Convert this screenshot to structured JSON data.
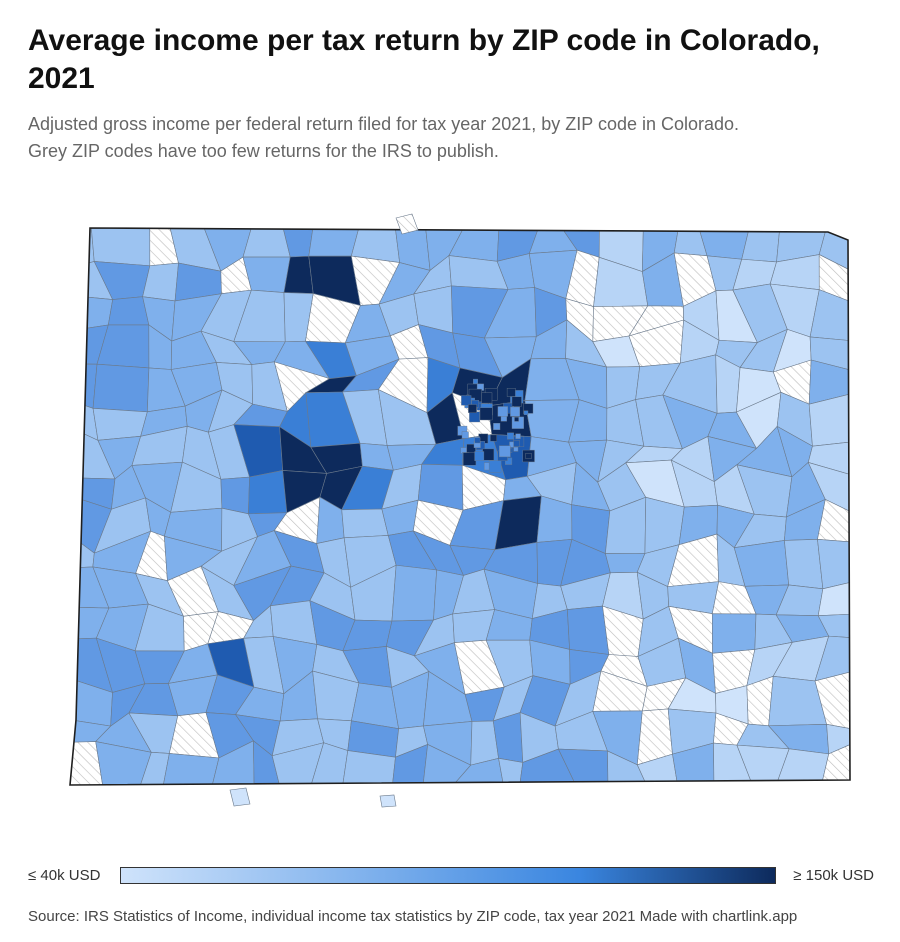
{
  "title": "Average income per tax return by ZIP code in Colorado, 2021",
  "subtitle_line1": "Adjusted gross income per federal return filed for tax year 2021, by ZIP code in Colorado.",
  "subtitle_line2": "Grey ZIP codes have too few returns for the IRS to publish.",
  "legend": {
    "min_label": "≤ 40k USD",
    "max_label": "≥ 150k USD",
    "min_value": 40000,
    "max_value": 150000,
    "color_low": "#cfe3fb",
    "color_mid": "#3a86e0",
    "color_high": "#0d2a5c"
  },
  "source": "Source: IRS Statistics of Income, individual income tax statistics by ZIP code, tax year 2021 Made with chartlink.app",
  "colors": {
    "missing_hatch": "#bdbdbd",
    "border": "#1f1f1f",
    "zip_stroke": "#6b7a8c"
  }
}
